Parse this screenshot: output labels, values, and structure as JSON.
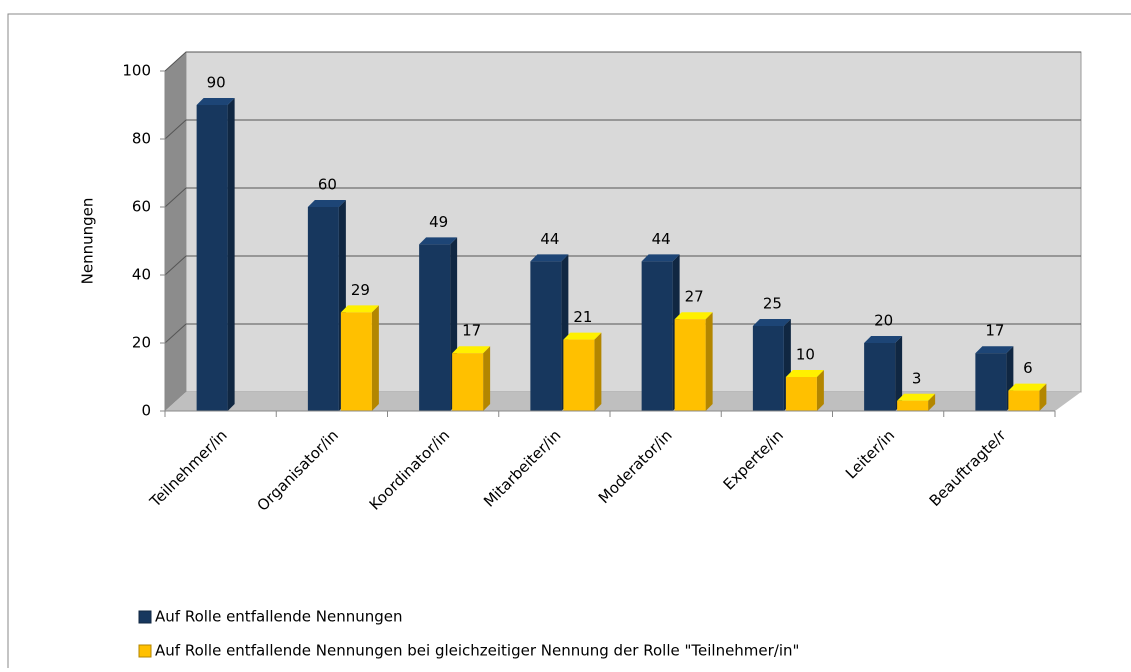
{
  "chart_data": {
    "type": "bar3d",
    "y_label": "Nennungen",
    "categories": [
      "Teilnehmer/in",
      "Organisator/in",
      "Koordinator/in",
      "Mitarbeiter/in",
      "Moderator/in",
      "Experte/in",
      "Leiter/in",
      "Beauftragte/r"
    ],
    "series": [
      {
        "name": "Auf Rolle entfallende Nennungen",
        "color": "#17375e",
        "values": [
          90,
          60,
          49,
          44,
          44,
          25,
          20,
          17
        ]
      },
      {
        "name": "Auf Rolle entfallende Nennungen bei gleichzeitiger Nennung der Rolle \"Teilnehmer/in\"",
        "color": "#ffc000",
        "values": [
          null,
          29,
          17,
          21,
          27,
          10,
          3,
          6
        ]
      }
    ],
    "ylim": [
      0,
      100
    ],
    "yticks": [
      0,
      20,
      40,
      60,
      80,
      100
    ],
    "grid": true,
    "legend": "bottom"
  }
}
